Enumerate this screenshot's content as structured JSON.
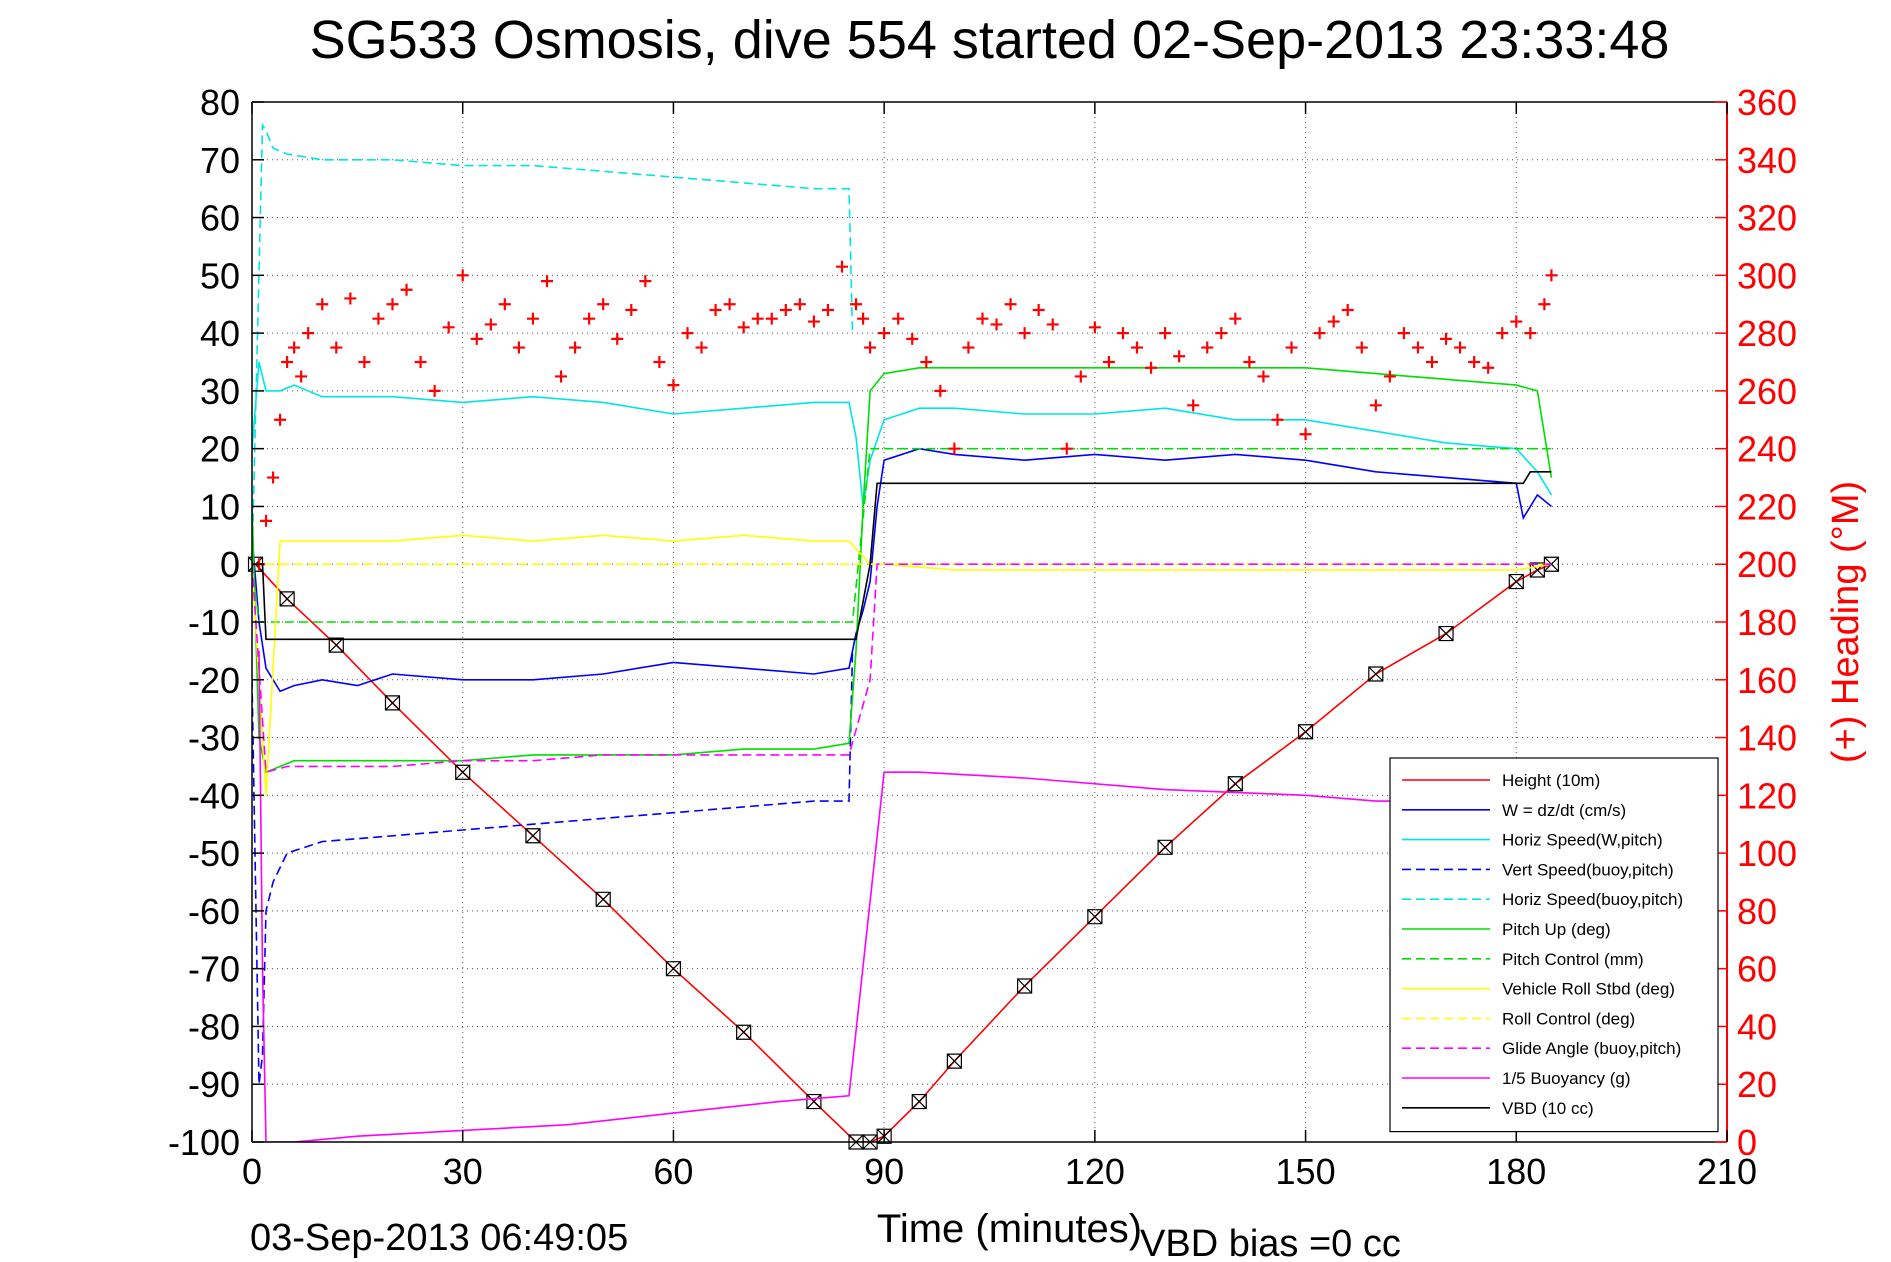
{
  "chart_data": {
    "type": "line",
    "title": "SG533 Osmosis, dive 554 started 02-Sep-2013 23:33:48",
    "xlabel": "Time (minutes)",
    "ylabel": "",
    "y2label": "(+) Heading (°M)",
    "xlim": [
      0,
      210
    ],
    "ylim": [
      -100,
      80
    ],
    "y2lim": [
      0,
      360
    ],
    "xticks": [
      0,
      30,
      60,
      90,
      120,
      150,
      180,
      210
    ],
    "yticks": [
      -100,
      -90,
      -80,
      -70,
      -60,
      -50,
      -40,
      -30,
      -20,
      -10,
      0,
      10,
      20,
      30,
      40,
      50,
      60,
      70,
      80
    ],
    "y2ticks": [
      0,
      20,
      40,
      60,
      80,
      100,
      120,
      140,
      160,
      180,
      200,
      220,
      240,
      260,
      280,
      300,
      320,
      340,
      360
    ],
    "grid": true,
    "legend_position": "lower-right",
    "end_time_label": "03-Sep-2013 06:49:05",
    "vbd_bias_label": "VBD bias =0 cc",
    "series": [
      {
        "name": "Height (10m)",
        "color": "#ff0000",
        "style": "solid",
        "marker": "square-x",
        "x": [
          0.5,
          5,
          12,
          20,
          30,
          40,
          50,
          60,
          70,
          80,
          86,
          88,
          90,
          95,
          100,
          110,
          120,
          130,
          140,
          150,
          160,
          170,
          180,
          183,
          185
        ],
        "y": [
          0,
          -6,
          -14,
          -24,
          -36,
          -47,
          -58,
          -70,
          -81,
          -93,
          -100,
          -100,
          -99,
          -93,
          -86,
          -73,
          -61,
          -49,
          -38,
          -29,
          -19,
          -12,
          -3,
          -1,
          0
        ]
      },
      {
        "name": "W = dz/dt (cm/s)",
        "color": "#0000ff",
        "style": "solid",
        "x": [
          0,
          1,
          2,
          4,
          6,
          10,
          15,
          20,
          30,
          40,
          50,
          60,
          70,
          80,
          85,
          86,
          87,
          88,
          89,
          90,
          95,
          100,
          110,
          120,
          130,
          140,
          150,
          160,
          170,
          180,
          181,
          183,
          185
        ],
        "y": [
          5,
          -10,
          -18,
          -22,
          -21,
          -20,
          -21,
          -19,
          -20,
          -20,
          -19,
          -17,
          -18,
          -19,
          -18,
          -12,
          -8,
          -3,
          10,
          18,
          20,
          19,
          18,
          19,
          18,
          19,
          18,
          16,
          15,
          14,
          8,
          12,
          10
        ]
      },
      {
        "name": "Horiz Speed(W,pitch)",
        "color": "#00e5e5",
        "style": "solid",
        "x": [
          0,
          1,
          2,
          4,
          6,
          10,
          20,
          30,
          40,
          50,
          60,
          70,
          80,
          85,
          86,
          87,
          88,
          90,
          95,
          100,
          110,
          120,
          130,
          140,
          150,
          160,
          170,
          180,
          183,
          185
        ],
        "y": [
          20,
          35,
          30,
          30,
          31,
          29,
          29,
          28,
          29,
          28,
          26,
          27,
          28,
          28,
          22,
          10,
          18,
          25,
          27,
          27,
          26,
          26,
          27,
          25,
          25,
          23,
          21,
          20,
          16,
          12
        ]
      },
      {
        "name": "Vert Speed(buoy,pitch)",
        "color": "#0000ff",
        "style": "dashed",
        "x": [
          0,
          1,
          1.5,
          2,
          3,
          5,
          10,
          20,
          30,
          40,
          50,
          60,
          70,
          80,
          85,
          85.5
        ],
        "y": [
          -20,
          -90,
          -85,
          -60,
          -55,
          -50,
          -48,
          -47,
          -46,
          -45,
          -44,
          -43,
          -42,
          -41,
          -41,
          -15
        ]
      },
      {
        "name": "Horiz Speed(buoy,pitch)",
        "color": "#00e5e5",
        "style": "dashed",
        "x": [
          0,
          1.5,
          2,
          3,
          5,
          10,
          20,
          30,
          40,
          50,
          60,
          70,
          80,
          85,
          85.5
        ],
        "y": [
          0,
          76,
          75,
          72,
          71,
          70,
          70,
          69,
          69,
          68,
          67,
          66,
          65,
          65,
          40
        ]
      },
      {
        "name": "Pitch Up (deg)",
        "color": "#00dd00",
        "style": "solid",
        "x": [
          0,
          1,
          2,
          4,
          6,
          10,
          20,
          30,
          40,
          50,
          60,
          70,
          80,
          85,
          86,
          87,
          88,
          90,
          95,
          100,
          110,
          120,
          130,
          140,
          150,
          160,
          170,
          180,
          183,
          185
        ],
        "y": [
          10,
          -30,
          -36,
          -35,
          -34,
          -34,
          -34,
          -34,
          -33,
          -33,
          -33,
          -32,
          -32,
          -31,
          -15,
          10,
          30,
          33,
          34,
          34,
          34,
          34,
          34,
          34,
          34,
          33,
          32,
          31,
          30,
          15
        ]
      },
      {
        "name": "Pitch Control (mm)",
        "color": "#00dd00",
        "style": "dashed",
        "x": [
          0,
          1,
          2,
          85,
          85.5,
          88,
          89,
          185
        ],
        "y": [
          0,
          -10,
          -10,
          -10,
          -10,
          20,
          20,
          20
        ]
      },
      {
        "name": "Vehicle Roll Stbd (deg)",
        "color": "#ffff00",
        "style": "solid",
        "x": [
          0,
          2,
          4,
          10,
          20,
          30,
          40,
          50,
          60,
          70,
          80,
          85,
          88,
          90,
          100,
          110,
          120,
          130,
          140,
          150,
          160,
          170,
          180,
          185
        ],
        "y": [
          0,
          -40,
          4,
          4,
          4,
          5,
          4,
          5,
          4,
          5,
          4,
          4,
          0,
          0,
          -1,
          -1,
          -1,
          -1,
          -1,
          -1,
          -1,
          -1,
          -1,
          0
        ]
      },
      {
        "name": "Roll Control (deg)",
        "color": "#ffff00",
        "style": "dashed",
        "x": [
          0,
          2,
          88,
          89,
          185
        ],
        "y": [
          0,
          0,
          0,
          0,
          0
        ]
      },
      {
        "name": "Glide Angle (buoy,pitch)",
        "color": "#ff00ff",
        "style": "dashed",
        "x": [
          0,
          2,
          5,
          10,
          20,
          30,
          40,
          50,
          60,
          70,
          80,
          85,
          88,
          89,
          185
        ],
        "y": [
          0,
          -36,
          -35,
          -35,
          -35,
          -34,
          -34,
          -33,
          -33,
          -33,
          -33,
          -33,
          -20,
          0,
          0
        ]
      },
      {
        "name": "1/5 Buoyancy (g)",
        "color": "#ff00ff",
        "style": "solid",
        "x": [
          1,
          1.5,
          2,
          6,
          15,
          30,
          45,
          60,
          75,
          85,
          90,
          95,
          110,
          130,
          150,
          160,
          165
        ],
        "y": [
          -15,
          -70,
          -100,
          -100,
          -99,
          -98,
          -97,
          -95,
          -93,
          -92,
          -36,
          -36,
          -37,
          -39,
          -40,
          -41,
          -41
        ]
      },
      {
        "name": "VBD (10 cc)",
        "color": "#000000",
        "style": "solid",
        "x": [
          0,
          1.5,
          2,
          85,
          86,
          88,
          89,
          181,
          182,
          185
        ],
        "y": [
          0,
          0,
          -13,
          -13,
          -13,
          0,
          14,
          14,
          16,
          16
        ]
      },
      {
        "name": "",
        "axis": "right",
        "color": "#ff0000",
        "marker": "plus",
        "x": [
          1,
          2,
          3,
          4,
          5,
          6,
          7,
          8,
          10,
          12,
          14,
          16,
          18,
          20,
          22,
          24,
          26,
          28,
          30,
          32,
          34,
          36,
          38,
          40,
          42,
          44,
          46,
          48,
          50,
          52,
          54,
          56,
          58,
          60,
          62,
          64,
          66,
          68,
          70,
          72,
          74,
          76,
          78,
          80,
          82,
          84,
          86,
          87,
          88,
          90,
          92,
          94,
          96,
          98,
          100,
          102,
          104,
          106,
          108,
          110,
          112,
          114,
          116,
          118,
          120,
          122,
          124,
          126,
          128,
          130,
          132,
          134,
          136,
          138,
          140,
          142,
          144,
          146,
          148,
          150,
          152,
          154,
          156,
          158,
          160,
          162,
          164,
          166,
          168,
          170,
          172,
          174,
          176,
          178,
          180,
          182,
          184,
          185
        ],
        "y": [
          200,
          215,
          230,
          250,
          270,
          275,
          265,
          280,
          290,
          275,
          292,
          270,
          285,
          290,
          295,
          270,
          260,
          282,
          300,
          278,
          283,
          290,
          275,
          285,
          298,
          265,
          275,
          285,
          290,
          278,
          288,
          298,
          270,
          262,
          280,
          275,
          288,
          290,
          282,
          285,
          285,
          288,
          290,
          284,
          288,
          303,
          290,
          285,
          275,
          280,
          285,
          278,
          270,
          260,
          240,
          275,
          285,
          283,
          290,
          280,
          288,
          283,
          240,
          265,
          282,
          270,
          280,
          275,
          268,
          280,
          272,
          255,
          275,
          280,
          285,
          270,
          265,
          250,
          275,
          245,
          280,
          284,
          288,
          275,
          255,
          265,
          280,
          275,
          270,
          278,
          275,
          270,
          268,
          280,
          284,
          280,
          290,
          300
        ]
      }
    ]
  }
}
